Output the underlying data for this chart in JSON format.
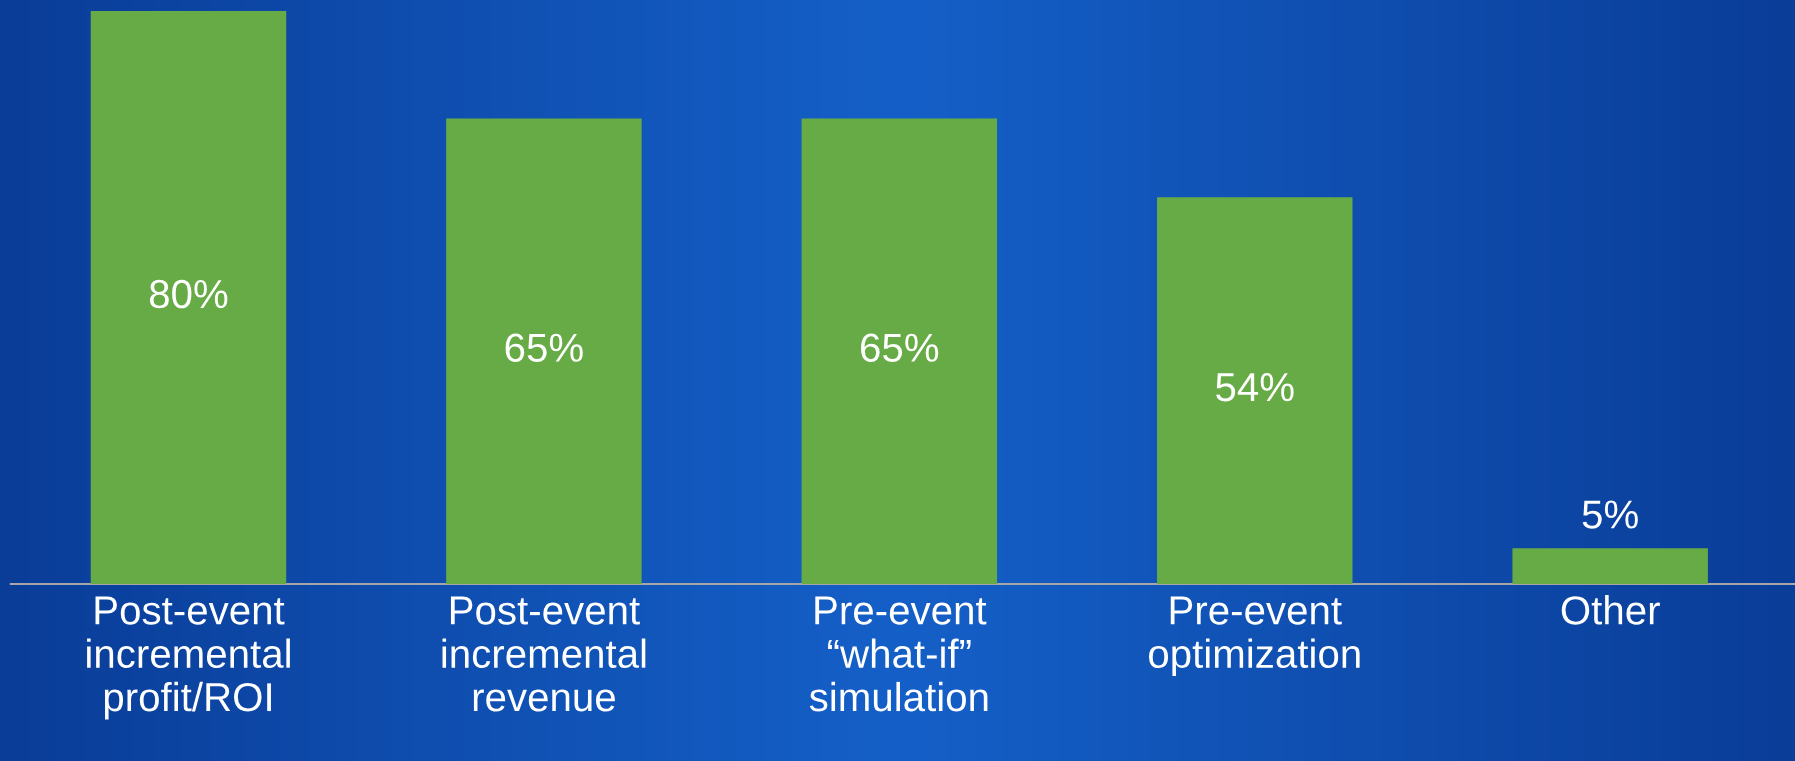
{
  "chart_data": {
    "type": "bar",
    "categories": [
      "Post-event\nincremental\nprofit/ROI",
      "Post-event\nincremental\nrevenue",
      "Pre-event\n“what-if”\nsimulation",
      "Pre-event\noptimization",
      "Other"
    ],
    "values": [
      80,
      65,
      65,
      54,
      5
    ],
    "value_labels": [
      "80%",
      "65%",
      "65%",
      "54%",
      "5%"
    ],
    "color": "#67ab46",
    "grid": false,
    "legend": false,
    "tick_labels": "x"
  }
}
